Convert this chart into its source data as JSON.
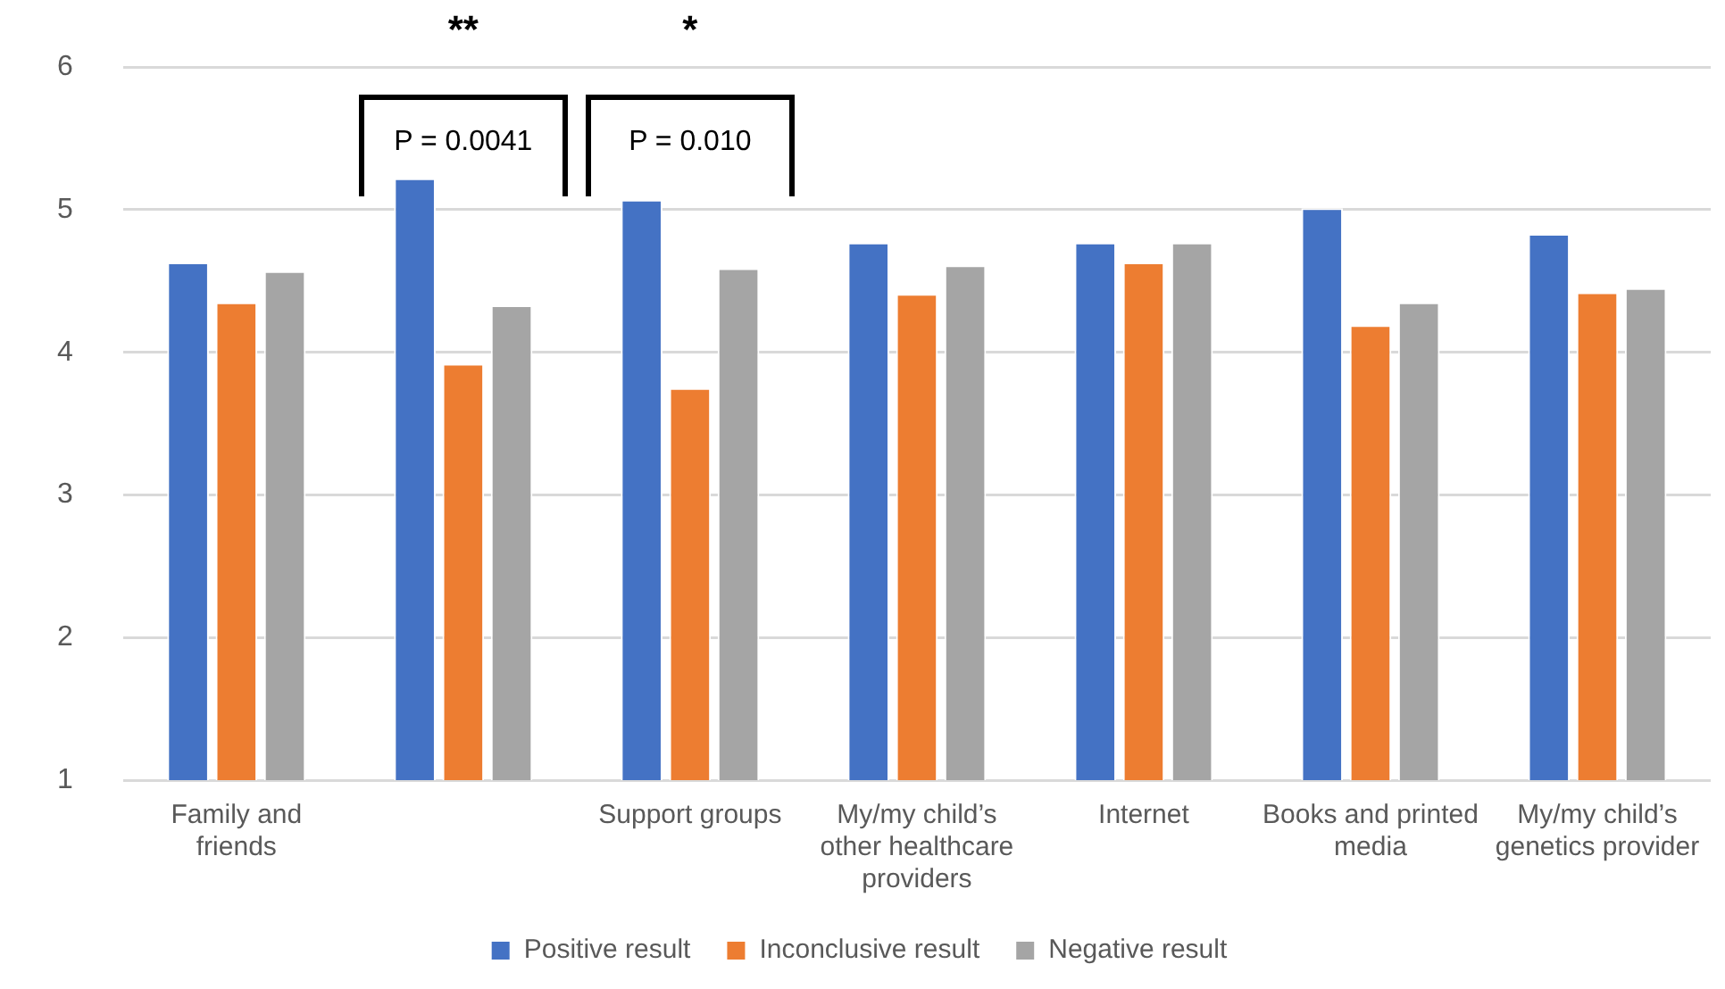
{
  "chart_data": {
    "type": "bar",
    "categories": [
      "Family and friends",
      null,
      "Support groups",
      "My/my child’s other healthcare providers",
      "Internet",
      "Books and printed media",
      "My/my child’s genetics provider"
    ],
    "series": [
      {
        "name": "Positive result",
        "color": "#4472c4",
        "values": [
          4.63,
          5.22,
          5.07,
          4.77,
          4.77,
          5.01,
          4.83
        ]
      },
      {
        "name": "Inconclusive result",
        "color": "#ed7d31",
        "values": [
          4.35,
          3.92,
          3.75,
          4.41,
          4.63,
          4.19,
          4.42
        ]
      },
      {
        "name": "Negative result",
        "color": "#a5a5a5",
        "values": [
          4.57,
          4.33,
          4.59,
          4.61,
          4.77,
          4.35,
          4.45
        ]
      }
    ],
    "ylim": [
      1,
      6
    ],
    "yticks": [
      1,
      2,
      3,
      4,
      5,
      6
    ],
    "grid": "y",
    "legend": "bottom",
    "annotations": [
      "**",
      "P = 0.0041",
      "*",
      "P = 0.010"
    ]
  }
}
